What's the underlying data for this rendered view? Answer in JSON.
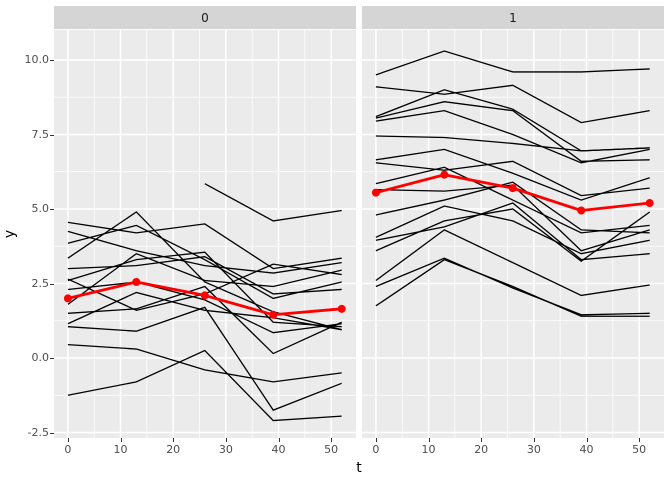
{
  "figure": {
    "xlabel": "t",
    "ylabel": "y"
  },
  "chart_data": {
    "type": "line",
    "title": "",
    "xlabel": "t",
    "ylabel": "y",
    "grid": true,
    "legend": false,
    "x": [
      0,
      13,
      26,
      39,
      52
    ],
    "x_ticks": [
      0,
      10,
      20,
      30,
      40,
      50
    ],
    "y_ticks": [
      "10.0",
      "7.5",
      "5.0",
      "2.5",
      "0.0",
      "-2.5"
    ],
    "y_tick_values": [
      10,
      7.5,
      5,
      2.5,
      0,
      -2.5
    ],
    "y_minor_values": [
      8.75,
      6.25,
      3.75,
      1.25,
      -1.25
    ],
    "x_minor_values": [
      5,
      15,
      25,
      35,
      45
    ],
    "xlim": [
      -2.6,
      54.6
    ],
    "ylim": [
      -2.68,
      11.0
    ],
    "colors": {
      "mean_line": "#ff0000",
      "subject_line": "#000000",
      "panel_bg": "#ebebeb",
      "strip_bg": "#d5d5d5",
      "grid": "#ffffff",
      "axis_text": "#4d4d4d",
      "tick_mark": "#333333"
    },
    "facets": [
      {
        "label": "0",
        "mean": [
          2.0,
          2.55,
          2.1,
          1.45,
          1.65
        ],
        "series": [
          [
            4.55,
            4.2,
            4.5,
            3.0,
            3.35
          ],
          [
            4.25,
            3.6,
            3.1,
            2.85,
            3.2
          ],
          [
            3.85,
            4.45,
            3.3,
            2.0,
            2.55
          ],
          [
            3.35,
            4.9,
            2.55,
            1.55,
            0.95
          ],
          [
            3.0,
            3.1,
            3.4,
            2.15,
            2.3
          ],
          [
            2.65,
            1.6,
            2.15,
            3.15,
            2.8
          ],
          [
            2.6,
            3.3,
            3.55,
            1.2,
            1.05
          ],
          [
            2.3,
            2.55,
            1.95,
            0.85,
            1.15
          ],
          [
            1.8,
            3.5,
            2.6,
            2.4,
            2.95
          ],
          [
            1.5,
            1.65,
            2.4,
            0.15,
            1.2
          ],
          [
            1.15,
            2.2,
            1.6,
            1.35,
            0.95
          ],
          [
            1.05,
            0.9,
            1.7,
            -1.75,
            -0.85
          ],
          [
            0.45,
            0.3,
            -0.4,
            -0.8,
            -0.5
          ],
          [
            -1.25,
            -0.8,
            0.25,
            -2.1,
            -1.95
          ],
          [
            null,
            null,
            5.85,
            4.6,
            4.95
          ]
        ]
      },
      {
        "label": "1",
        "mean": [
          5.55,
          6.15,
          5.7,
          4.95,
          5.2
        ],
        "series": [
          [
            9.5,
            10.3,
            9.6,
            9.6,
            9.7
          ],
          [
            9.1,
            8.85,
            9.15,
            7.9,
            8.3
          ],
          [
            8.1,
            9.0,
            8.35,
            6.95,
            7.05
          ],
          [
            8.05,
            8.6,
            8.3,
            6.6,
            6.65
          ],
          [
            7.95,
            8.3,
            7.5,
            6.55,
            7.0
          ],
          [
            7.45,
            7.4,
            7.2,
            6.95,
            7.05
          ],
          [
            6.65,
            7.0,
            6.2,
            5.3,
            6.05
          ],
          [
            6.55,
            6.3,
            6.6,
            5.45,
            5.7
          ],
          [
            5.85,
            6.4,
            5.3,
            4.2,
            4.45
          ],
          [
            5.65,
            5.6,
            5.8,
            3.6,
            4.3
          ],
          [
            4.8,
            5.3,
            5.9,
            4.3,
            4.2
          ],
          [
            4.05,
            5.1,
            4.6,
            3.5,
            3.95
          ],
          [
            3.95,
            4.4,
            5.2,
            3.3,
            3.5
          ],
          [
            3.6,
            4.6,
            5.0,
            3.25,
            4.9
          ],
          [
            2.6,
            4.3,
            3.2,
            2.1,
            2.45
          ],
          [
            2.4,
            3.35,
            2.35,
            1.45,
            1.5
          ],
          [
            1.75,
            3.3,
            2.4,
            1.4,
            1.4
          ]
        ]
      }
    ]
  }
}
